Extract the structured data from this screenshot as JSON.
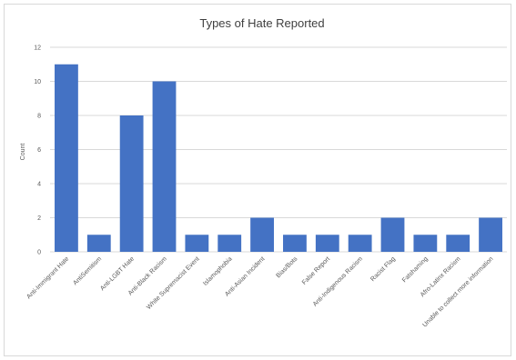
{
  "chart_data": {
    "type": "bar",
    "title": "Types of Hate Reported",
    "xlabel": "",
    "ylabel": "Count",
    "ylim": [
      0,
      12
    ],
    "yticks": [
      0,
      2,
      4,
      6,
      8,
      10,
      12
    ],
    "grid": true,
    "bar_color": "#4472c4",
    "categories": [
      "Anti-Immigrant Hate",
      "AntiSemitism",
      "Anti-LGBT Hate",
      "Anti-Black Racism",
      "White Supremacist Event",
      "Islamophobia",
      "Anti-Asian Incident",
      "Bias/Bots",
      "False Report",
      "Anti-Indigenous Racism",
      "Racist Flag",
      "Fatshaming",
      "Afro-Latinx Racism",
      "Unable to collect more information"
    ],
    "values": [
      11,
      1,
      8,
      10,
      1,
      1,
      2,
      1,
      1,
      1,
      2,
      1,
      1,
      2
    ]
  }
}
